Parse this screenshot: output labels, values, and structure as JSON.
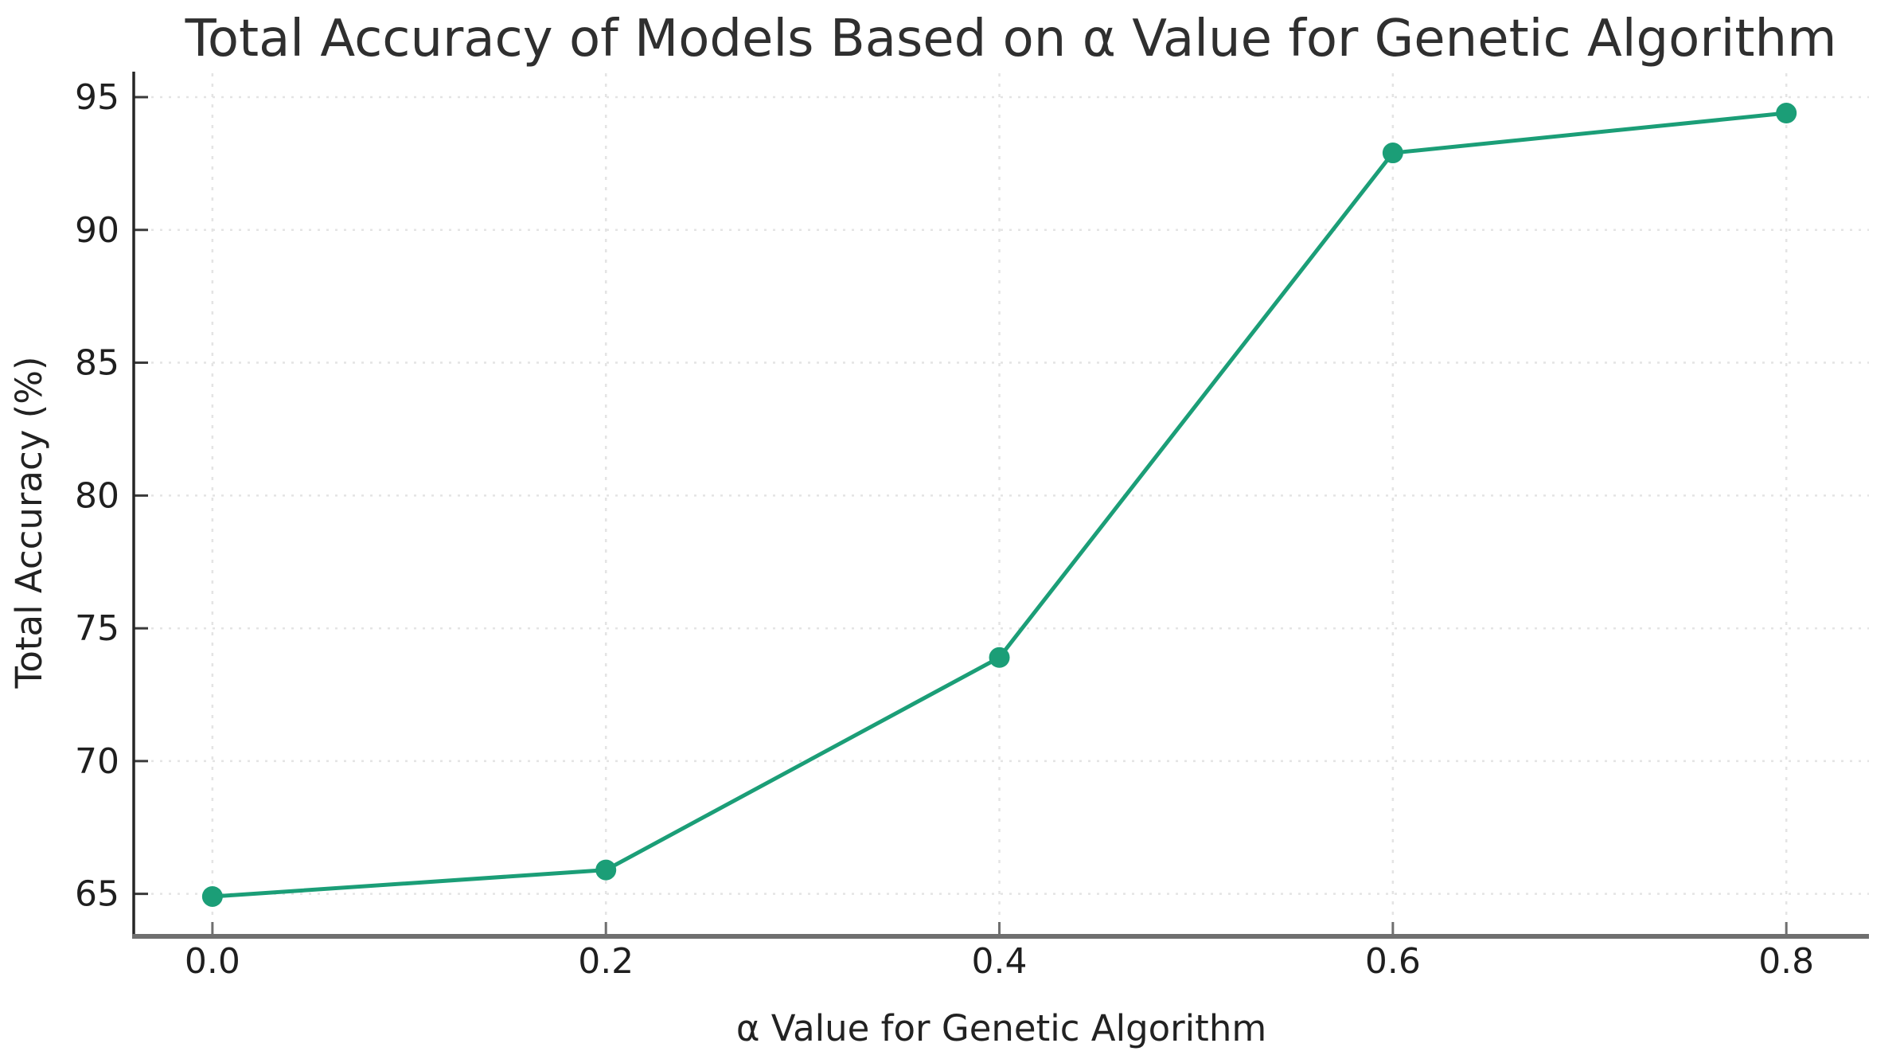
{
  "chart_data": {
    "type": "line",
    "title": "Total Accuracy of Models Based on α Value for Genetic Algorithm",
    "xlabel": "α Value for Genetic Algorithm",
    "ylabel": "Total Accuracy (%)",
    "x": [
      0.0,
      0.2,
      0.4,
      0.6,
      0.8
    ],
    "series": [
      {
        "name": "Total Accuracy",
        "values": [
          64.9,
          65.9,
          73.9,
          92.9,
          94.4
        ]
      }
    ],
    "x_tick_labels": [
      "0.0",
      "0.2",
      "0.4",
      "0.6",
      "0.8"
    ],
    "x_tick_values": [
      0.0,
      0.2,
      0.4,
      0.6,
      0.8
    ],
    "y_tick_labels": [
      "65",
      "70",
      "75",
      "80",
      "85",
      "90",
      "95"
    ],
    "y_tick_values": [
      65,
      70,
      75,
      80,
      85,
      90,
      95
    ],
    "xlim": [
      -0.04,
      0.842
    ],
    "ylim": [
      63.4,
      95.9
    ],
    "grid": true,
    "legend": "none",
    "marker": "circle",
    "style": {
      "line_color": "#1b9e77",
      "marker_color": "#1b9e77",
      "grid_color": "#e4e4e4",
      "title_color": "#2f2f2f",
      "tick_label_color": "#1f1f1f",
      "axis_label_color": "#222222",
      "left_spine_color": "#262626",
      "bottom_spine_color": "#6f6f6f",
      "y_tick_color": "#3a3a3a",
      "x_tick_color": "#6f6f6f",
      "background_color": "#ffffff"
    }
  }
}
